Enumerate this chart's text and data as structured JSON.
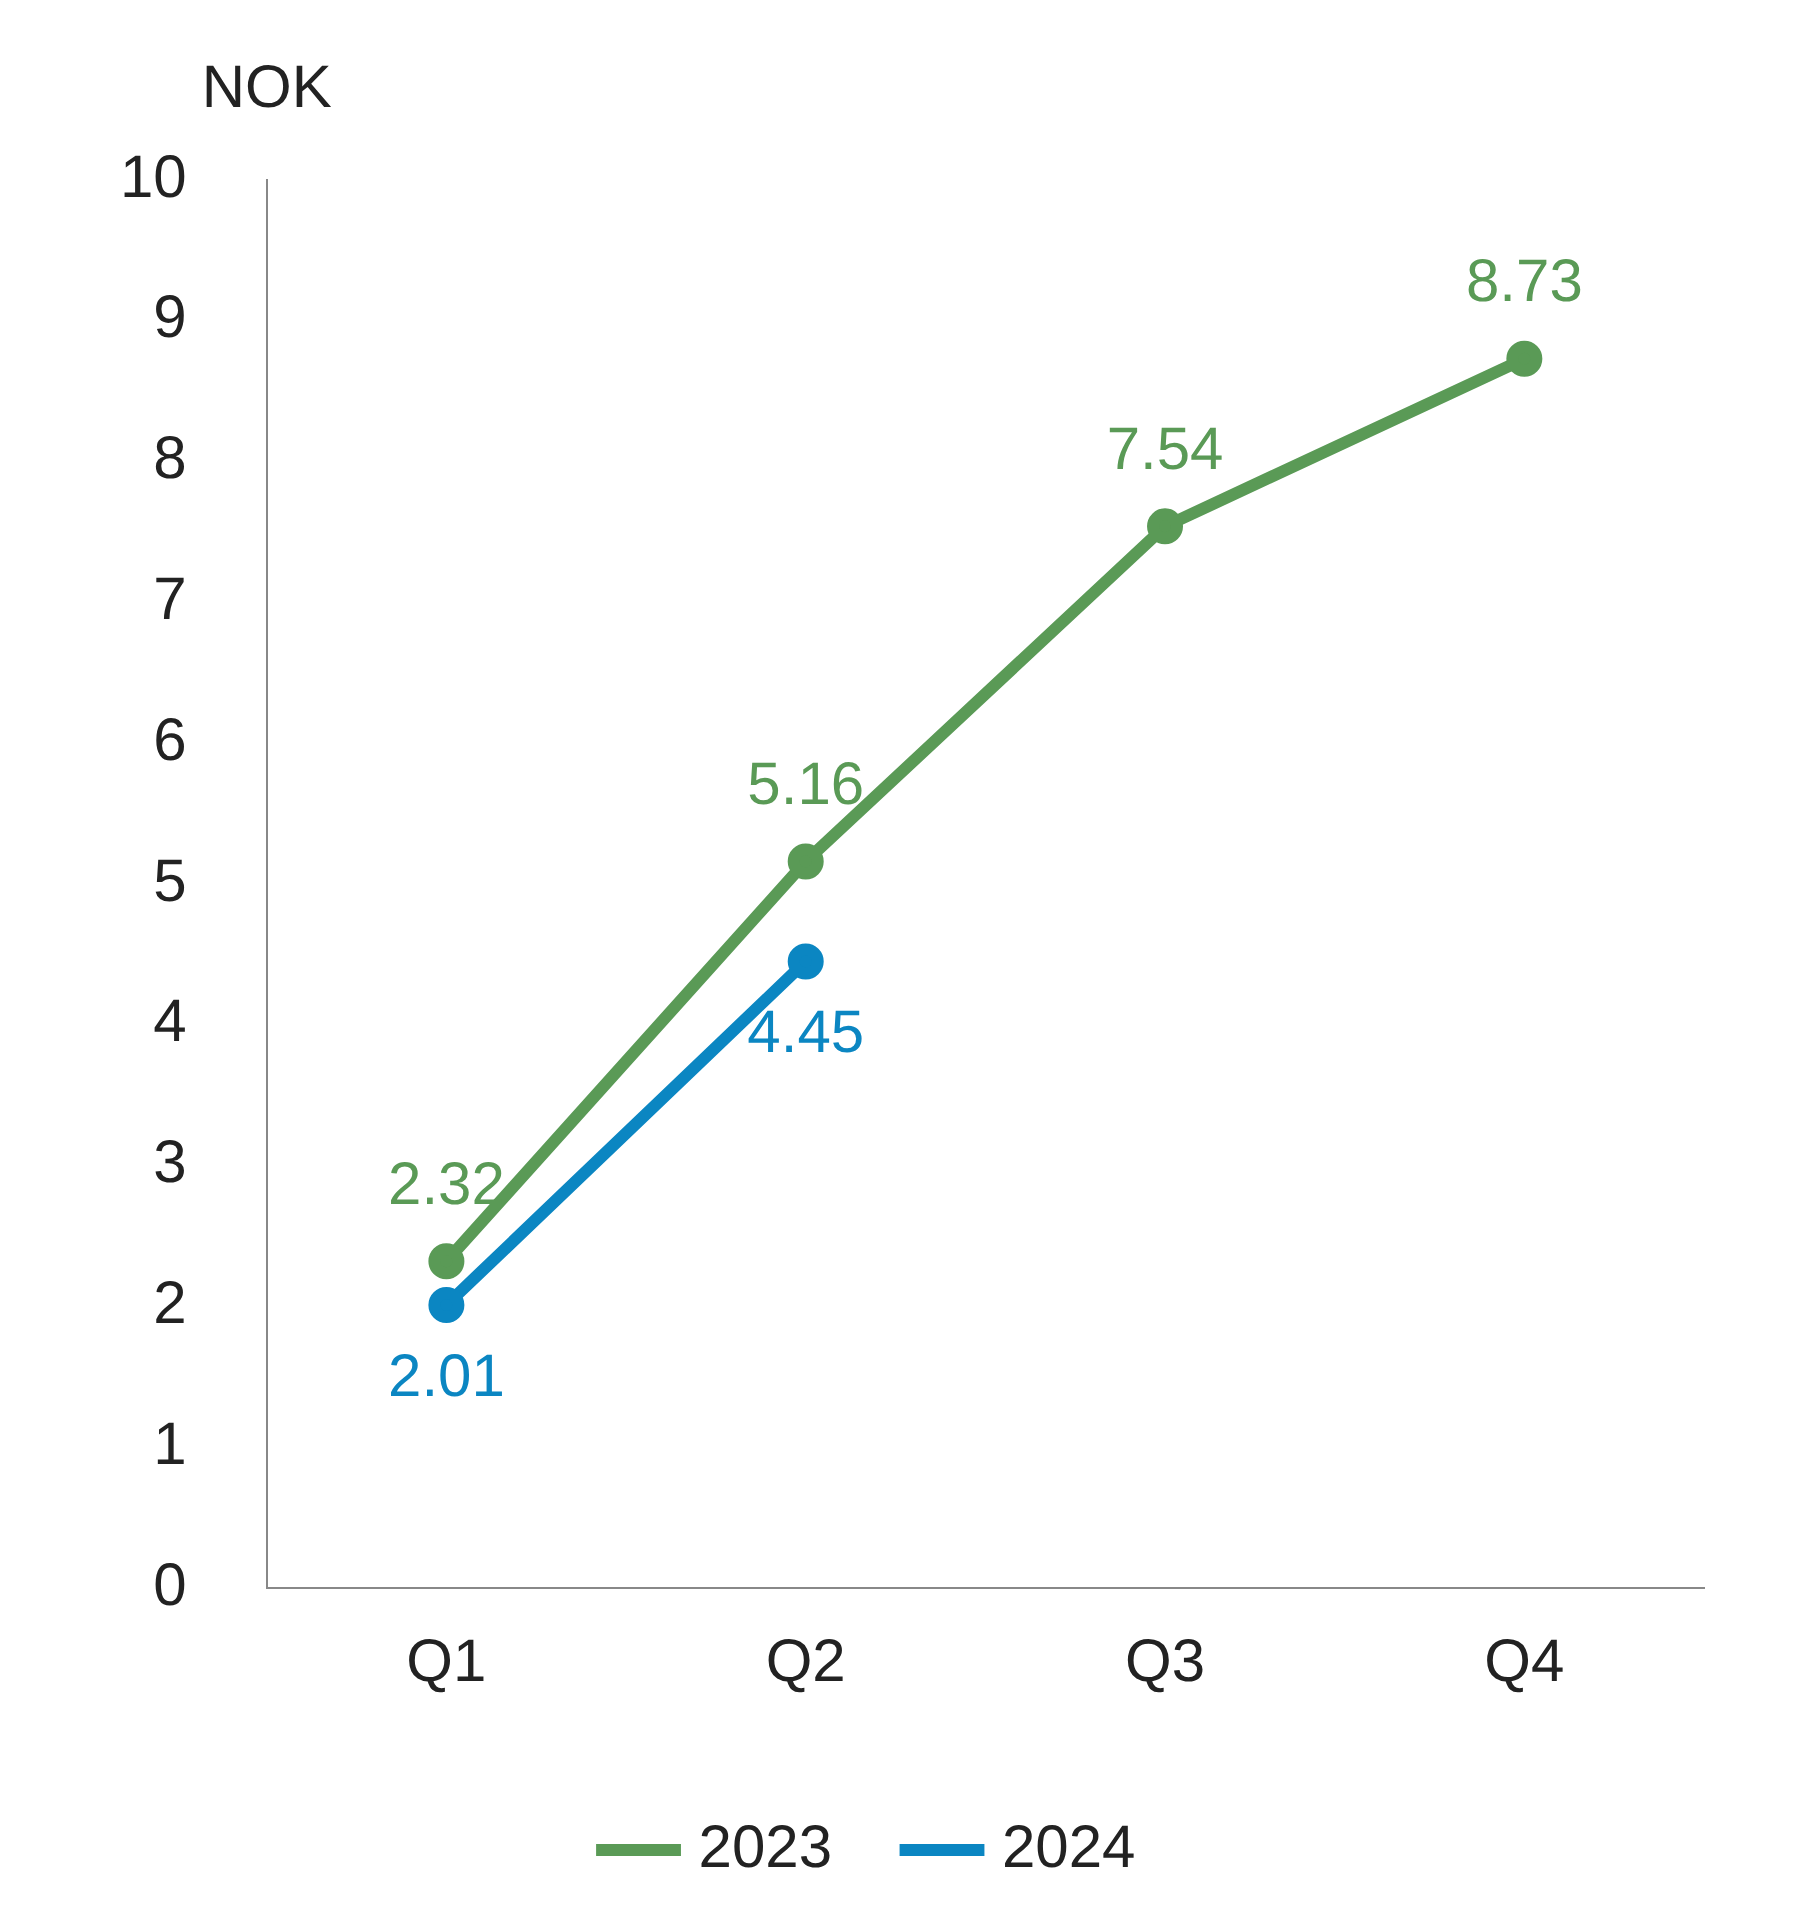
{
  "chart_data": {
    "type": "line",
    "ylabel": "NOK",
    "categories": [
      "Q1",
      "Q2",
      "Q3",
      "Q4"
    ],
    "series": [
      {
        "name": "2023",
        "color": "#5a9a56",
        "values": [
          2.32,
          5.16,
          7.54,
          8.73
        ]
      },
      {
        "name": "2024",
        "color": "#0b86c2",
        "values": [
          2.01,
          4.45,
          null,
          null
        ]
      }
    ],
    "ylim": [
      0,
      10
    ],
    "yticks": [
      0,
      1,
      2,
      3,
      4,
      5,
      6,
      7,
      8,
      9,
      10
    ],
    "grid": false,
    "legend": "bottom",
    "marker": "circle",
    "line_style": "solid",
    "data_labels": true
  }
}
